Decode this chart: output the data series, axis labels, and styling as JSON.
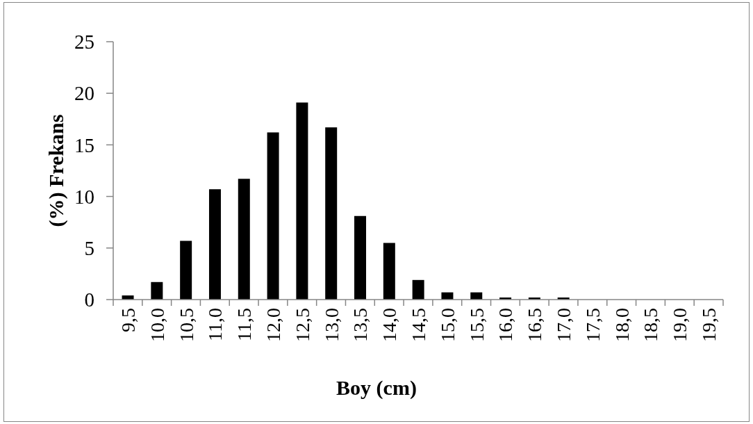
{
  "chart_data": {
    "type": "bar",
    "xlabel": "Boy (cm)",
    "ylabel": "(%) Frekans",
    "categories": [
      "9,5",
      "10,0",
      "10,5",
      "11,0",
      "11,5",
      "12,0",
      "12,5",
      "13,0",
      "13,5",
      "14,0",
      "14,5",
      "15,0",
      "15,5",
      "16,0",
      "16,5",
      "17,0",
      "17,5",
      "18,0",
      "18,5",
      "19,0",
      "19,5"
    ],
    "values": [
      0.4,
      1.7,
      5.7,
      10.7,
      11.7,
      16.2,
      19.1,
      16.7,
      8.1,
      5.5,
      1.9,
      0.7,
      0.7,
      0.2,
      0.2,
      0.2,
      0,
      0,
      0,
      0,
      0
    ],
    "color": "#000000",
    "ylim": [
      0,
      25
    ],
    "yticks": [
      0,
      5,
      10,
      15,
      20,
      25
    ]
  }
}
